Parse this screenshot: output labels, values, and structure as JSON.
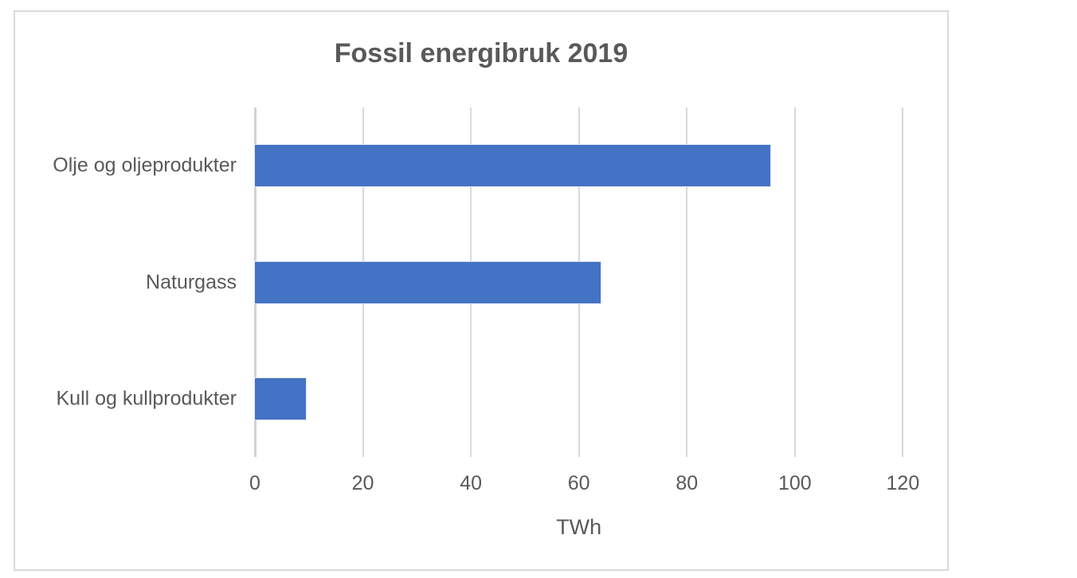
{
  "chart_data": {
    "type": "bar",
    "orientation": "horizontal",
    "title": "Fossil energibruk 2019",
    "categories": [
      "Olje og oljeprodukter",
      "Naturgass",
      "Kull og kullprodukter"
    ],
    "values": [
      95.5,
      64,
      9.5
    ],
    "xlabel": "TWh",
    "ylabel": "",
    "xlim": [
      0,
      120
    ],
    "xticks": [
      0,
      20,
      40,
      60,
      80,
      100,
      120
    ],
    "grid": true,
    "legend": false
  },
  "colors": {
    "bar": "#4472c4",
    "text": "#595959",
    "gridline": "#d9d9d9",
    "frame_border": "#d9d9d9",
    "background": "#ffffff"
  }
}
